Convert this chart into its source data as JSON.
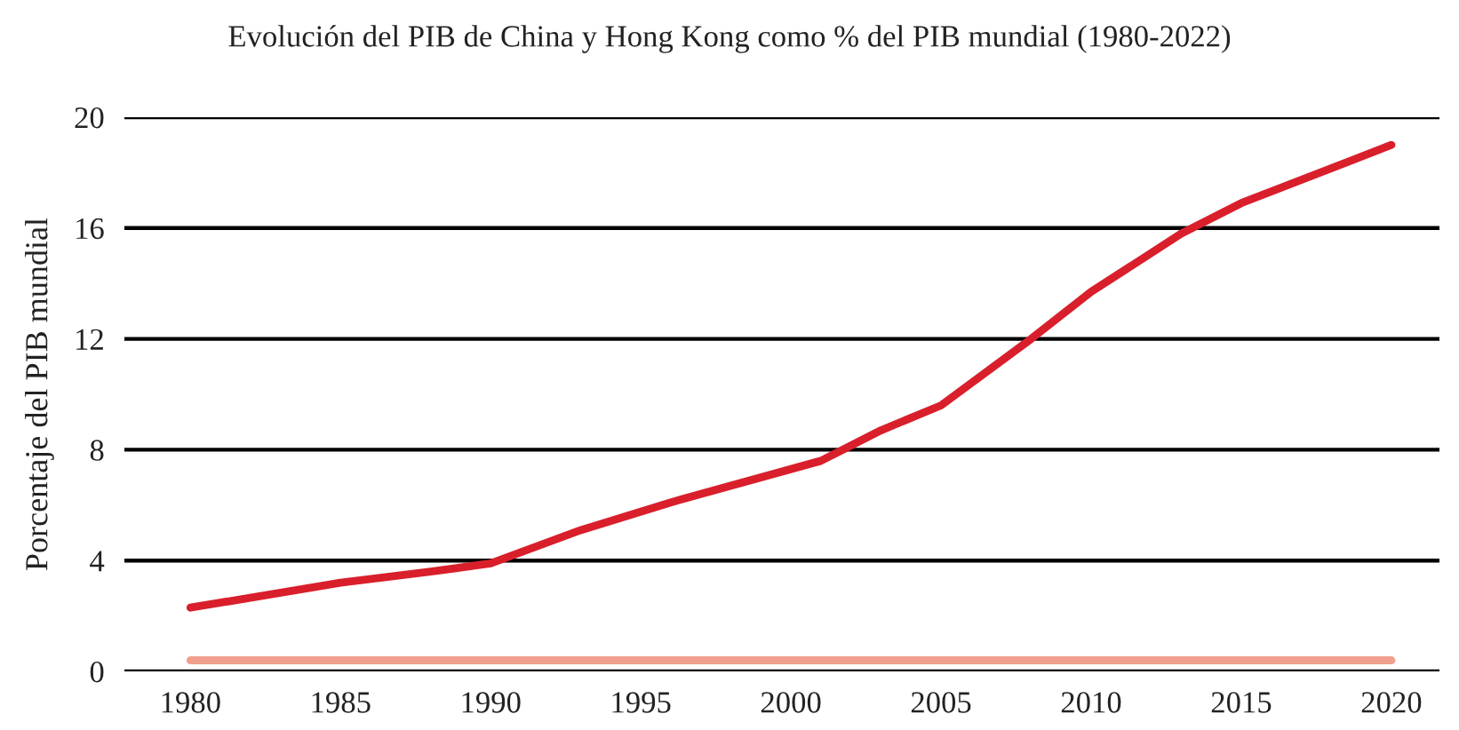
{
  "chart_data": {
    "type": "line",
    "title": "Evolución del PIB de China y Hong Kong como % del PIB mundial (1980-2022)",
    "ylabel": "Porcentaje del PIB mundial",
    "series": [
      {
        "color": "#d91f2b",
        "x": [
          1980,
          1985,
          1988,
          1990,
          1993,
          1996,
          2001,
          2003,
          2005,
          2008,
          2010,
          2013,
          2015,
          2020
        ],
        "values": [
          2.3,
          3.2,
          3.6,
          3.9,
          5.1,
          6.1,
          7.6,
          8.7,
          9.6,
          12.0,
          13.7,
          15.8,
          16.9,
          19.0
        ]
      },
      {
        "color": "#f0a08c",
        "x": [
          1980,
          2020
        ],
        "values": [
          0.4,
          0.4
        ]
      }
    ],
    "xlim": [
      1977.8,
      2021.6
    ],
    "xticks": [
      1980,
      1985,
      1990,
      1995,
      2000,
      2005,
      2010,
      2015,
      2020
    ],
    "ylim": [
      0,
      20
    ],
    "yticks": [
      0,
      4,
      8,
      12,
      16,
      20
    ],
    "grid": "y",
    "legend": false,
    "marker": "none",
    "line_style": "solid"
  }
}
